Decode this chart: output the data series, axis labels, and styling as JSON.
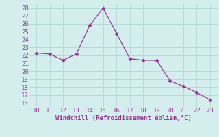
{
  "x": [
    10,
    11,
    12,
    13,
    14,
    15,
    16,
    17,
    18,
    19,
    20,
    21,
    22,
    23
  ],
  "y": [
    22.3,
    22.2,
    21.4,
    22.2,
    25.8,
    28.0,
    24.8,
    21.6,
    21.4,
    21.4,
    18.8,
    18.1,
    17.3,
    16.4
  ],
  "line_color": "#993399",
  "marker": "D",
  "marker_size": 2.5,
  "xlabel": "Windchill (Refroidissement éolien,°C)",
  "xlabel_color": "#993399",
  "ylim": [
    15.5,
    28.5
  ],
  "xlim": [
    9.5,
    23.5
  ],
  "yticks": [
    16,
    17,
    18,
    19,
    20,
    21,
    22,
    23,
    24,
    25,
    26,
    27,
    28
  ],
  "xticks": [
    10,
    11,
    12,
    13,
    14,
    15,
    16,
    17,
    18,
    19,
    20,
    21,
    22,
    23
  ],
  "background_color": "#d4eeed",
  "grid_color": "#aad4d0",
  "tick_label_color": "#993399",
  "font_size": 6.5
}
